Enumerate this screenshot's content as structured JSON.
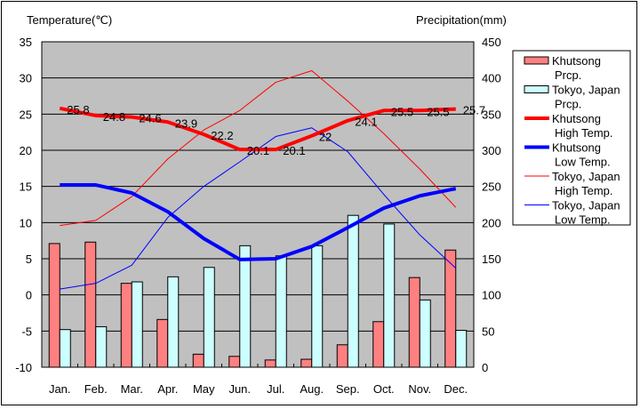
{
  "chart_data": {
    "type": "bar+line",
    "left_axis": {
      "title": "Temperature(℃)",
      "range": [
        -10,
        35
      ],
      "ticks": [
        35,
        30,
        25,
        20,
        15,
        10,
        5,
        0,
        -5,
        -10
      ]
    },
    "right_axis": {
      "title": "Precipitation(mm)",
      "range": [
        0,
        450
      ],
      "ticks": [
        450,
        400,
        350,
        300,
        250,
        200,
        150,
        100,
        50,
        0
      ]
    },
    "categories": [
      "Jan.",
      "Feb.",
      "Mar.",
      "Apr.",
      "May",
      "Jun.",
      "Jul.",
      "Aug.",
      "Sep.",
      "Oct.",
      "Nov.",
      "Dec."
    ],
    "grid": true,
    "legend_position": "right",
    "bar_series": [
      {
        "name": [
          "Khutsong",
          "Prcp."
        ],
        "color": "#ff8080",
        "axis": "right",
        "values": [
          171,
          173,
          116,
          66,
          18,
          15,
          10,
          11,
          31,
          63,
          124,
          162
        ]
      },
      {
        "name": [
          "Tokyo, Japan",
          "Prcp."
        ],
        "color": "#ccffff",
        "axis": "right",
        "values": [
          52,
          56,
          118,
          125,
          138,
          168,
          154,
          168,
          210,
          198,
          93,
          51
        ]
      }
    ],
    "line_series": [
      {
        "name": [
          "Khutsong",
          "High Temp."
        ],
        "color": "#ff0000",
        "width": "thick",
        "axis": "left",
        "values": [
          25.8,
          24.8,
          24.6,
          23.9,
          22.2,
          20.1,
          20.1,
          22,
          24.1,
          25.5,
          25.5,
          25.7
        ],
        "labels": [
          "25.8",
          "24.8",
          "24.6",
          "23.9",
          "22.2",
          "20.1",
          "20.1",
          "22",
          "24.1",
          "25.5",
          "25.5",
          "25.7"
        ]
      },
      {
        "name": [
          "Khutsong",
          "Low Temp."
        ],
        "color": "#0000ff",
        "width": "thick",
        "axis": "left",
        "values": [
          15.2,
          15.2,
          14.1,
          11.5,
          7.8,
          4.9,
          5.0,
          6.7,
          9.3,
          12.0,
          13.7,
          14.7
        ]
      },
      {
        "name": [
          "Tokyo, Japan",
          "High Temp."
        ],
        "color": "#ff0000",
        "width": "thin",
        "axis": "left",
        "values": [
          9.6,
          10.3,
          13.6,
          18.8,
          22.8,
          25.5,
          29.4,
          31.0,
          26.8,
          22.3,
          17.4,
          12.1
        ]
      },
      {
        "name": [
          "Tokyo, Japan",
          "Low Temp."
        ],
        "color": "#0000ff",
        "width": "thin",
        "axis": "left",
        "values": [
          0.8,
          1.6,
          4.1,
          10.7,
          15.0,
          18.4,
          21.9,
          23.1,
          19.8,
          13.9,
          8.3,
          3.7
        ]
      }
    ]
  }
}
